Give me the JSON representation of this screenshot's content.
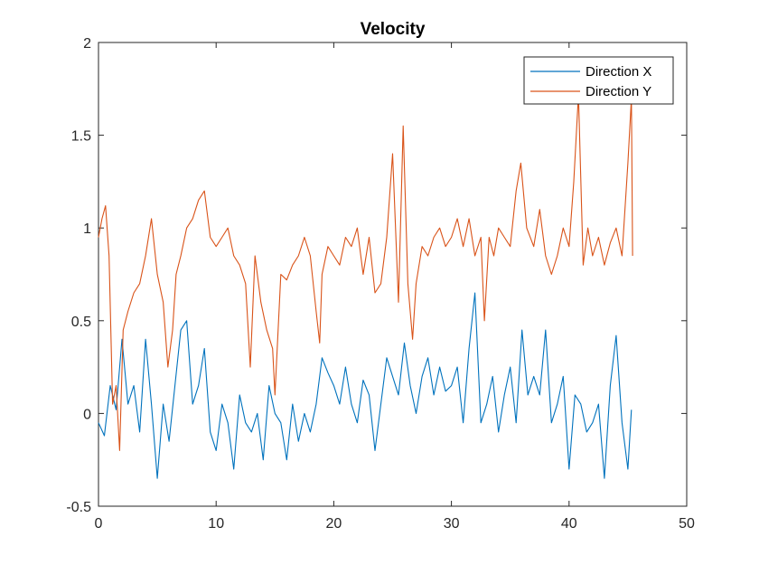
{
  "chart_data": {
    "type": "line",
    "title": "Velocity",
    "xlabel": "",
    "ylabel": "",
    "xlim": [
      0,
      50
    ],
    "ylim": [
      -0.5,
      2
    ],
    "xticks": [
      "0",
      "10",
      "20",
      "30",
      "40",
      "50"
    ],
    "yticks": [
      "-0.5",
      "0",
      "0.5",
      "1",
      "1.5",
      "2"
    ],
    "grid": false,
    "legend_position": "top-right",
    "series": [
      {
        "name": "Direction X",
        "color": "#0072BD",
        "x": [
          0,
          0.5,
          1,
          1.5,
          2,
          2.5,
          3,
          3.5,
          4,
          4.5,
          5,
          5.5,
          6,
          6.5,
          7,
          7.5,
          8,
          8.5,
          9,
          9.5,
          10,
          10.5,
          11,
          11.5,
          12,
          12.5,
          13,
          13.5,
          14,
          14.5,
          15,
          15.5,
          16,
          16.5,
          17,
          17.5,
          18,
          18.5,
          19,
          19.5,
          20,
          20.5,
          21,
          21.5,
          22,
          22.5,
          23,
          23.5,
          24,
          24.5,
          25,
          25.5,
          26,
          26.5,
          27,
          27.5,
          28,
          28.5,
          29,
          29.5,
          30,
          30.5,
          31,
          31.5,
          32,
          32.5,
          33,
          33.5,
          34,
          34.5,
          35,
          35.5,
          36,
          36.5,
          37,
          37.5,
          38,
          38.5,
          39,
          39.5,
          40,
          40.5,
          41,
          41.5,
          42,
          42.5,
          43,
          43.5,
          44,
          44.5,
          45,
          45.3
        ],
        "y": [
          -0.05,
          -0.12,
          0.15,
          0.02,
          0.4,
          0.05,
          0.15,
          -0.1,
          0.4,
          0.05,
          -0.35,
          0.05,
          -0.15,
          0.15,
          0.45,
          0.5,
          0.05,
          0.15,
          0.35,
          -0.1,
          -0.2,
          0.05,
          -0.05,
          -0.3,
          0.1,
          -0.05,
          -0.1,
          0.0,
          -0.25,
          0.15,
          0.0,
          -0.05,
          -0.25,
          0.05,
          -0.15,
          0.0,
          -0.1,
          0.05,
          0.3,
          0.22,
          0.15,
          0.05,
          0.25,
          0.05,
          -0.05,
          0.18,
          0.1,
          -0.2,
          0.05,
          0.3,
          0.2,
          0.1,
          0.38,
          0.15,
          0.0,
          0.2,
          0.3,
          0.1,
          0.25,
          0.12,
          0.15,
          0.25,
          -0.05,
          0.35,
          0.65,
          -0.05,
          0.05,
          0.2,
          -0.1,
          0.1,
          0.25,
          -0.05,
          0.45,
          0.1,
          0.2,
          0.1,
          0.45,
          -0.05,
          0.05,
          0.2,
          -0.3,
          0.1,
          0.05,
          -0.1,
          -0.05,
          0.05,
          -0.35,
          0.15,
          0.42,
          -0.05,
          -0.3,
          0.02
        ]
      },
      {
        "name": "Direction Y",
        "color": "#D95319",
        "x": [
          0,
          0.3,
          0.6,
          0.9,
          1.2,
          1.5,
          1.8,
          2.1,
          2.5,
          3,
          3.5,
          4,
          4.5,
          5,
          5.5,
          5.9,
          6.3,
          6.6,
          7,
          7.5,
          8,
          8.5,
          9,
          9.5,
          10,
          10.5,
          11,
          11.5,
          12,
          12.5,
          12.9,
          13.3,
          13.8,
          14.3,
          14.8,
          15,
          15.5,
          16,
          16.5,
          17,
          17.5,
          18,
          18.5,
          18.8,
          19,
          19.5,
          20,
          20.5,
          21,
          21.5,
          22,
          22.5,
          23,
          23.5,
          24,
          24.5,
          25,
          25.5,
          25.9,
          26.3,
          26.7,
          27,
          27.5,
          28,
          28.5,
          29,
          29.5,
          30,
          30.5,
          31,
          31.5,
          32,
          32.5,
          32.8,
          33.2,
          33.6,
          34,
          34.5,
          35,
          35.5,
          35.9,
          36.4,
          37,
          37.5,
          38,
          38.5,
          39,
          39.5,
          40,
          40.4,
          40.8,
          41.2,
          41.6,
          42,
          42.5,
          43,
          43.5,
          44,
          44.5,
          45,
          45.3,
          45.4
        ],
        "y": [
          0.95,
          1.05,
          1.12,
          0.85,
          0.05,
          0.15,
          -0.2,
          0.45,
          0.55,
          0.65,
          0.7,
          0.85,
          1.05,
          0.75,
          0.6,
          0.25,
          0.45,
          0.75,
          0.85,
          1.0,
          1.05,
          1.15,
          1.2,
          0.95,
          0.9,
          0.95,
          1.0,
          0.85,
          0.8,
          0.7,
          0.25,
          0.85,
          0.6,
          0.45,
          0.35,
          0.1,
          0.75,
          0.72,
          0.8,
          0.85,
          0.95,
          0.85,
          0.55,
          0.38,
          0.75,
          0.9,
          0.85,
          0.8,
          0.95,
          0.9,
          1.0,
          0.75,
          0.95,
          0.65,
          0.7,
          0.95,
          1.4,
          0.6,
          1.55,
          0.7,
          0.4,
          0.7,
          0.9,
          0.85,
          0.95,
          1.0,
          0.9,
          0.95,
          1.05,
          0.9,
          1.05,
          0.85,
          0.95,
          0.5,
          0.95,
          0.85,
          1.0,
          0.95,
          0.9,
          1.2,
          1.35,
          1.0,
          0.9,
          1.1,
          0.85,
          0.75,
          0.85,
          1.0,
          0.9,
          1.25,
          1.72,
          0.8,
          1.0,
          0.85,
          0.95,
          0.8,
          0.92,
          1.0,
          0.85,
          1.35,
          1.7,
          0.85
        ]
      }
    ]
  }
}
